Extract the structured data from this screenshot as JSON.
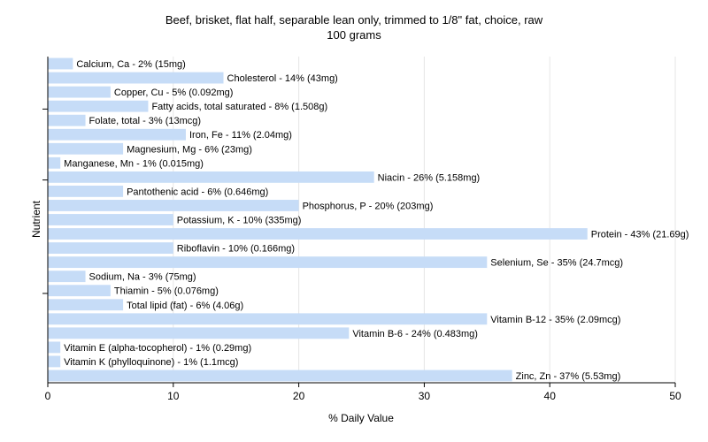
{
  "chart_data": {
    "type": "bar",
    "orientation": "horizontal",
    "title": "Beef, brisket, flat half, separable lean only, trimmed to 1/8\" fat, choice, raw",
    "subtitle": "100 grams",
    "xlabel": "% Daily Value",
    "ylabel": "Nutrient",
    "xlim": [
      0,
      50
    ],
    "xticks": [
      0,
      10,
      20,
      30,
      40,
      50
    ],
    "grid": true,
    "bar_color": "#c6dcf7",
    "categories": [
      "Calcium, Ca",
      "Cholesterol",
      "Copper, Cu",
      "Fatty acids, total saturated",
      "Folate, total",
      "Iron, Fe",
      "Magnesium, Mg",
      "Manganese, Mn",
      "Niacin",
      "Pantothenic acid",
      "Phosphorus, P",
      "Potassium, K",
      "Protein",
      "Riboflavin",
      "Selenium, Se",
      "Sodium, Na",
      "Thiamin",
      "Total lipid (fat)",
      "Vitamin B-12",
      "Vitamin B-6",
      "Vitamin E (alpha-tocopherol)",
      "Vitamin K (phylloquinone)",
      "Zinc, Zn"
    ],
    "values": [
      2,
      14,
      5,
      8,
      3,
      11,
      6,
      1,
      26,
      6,
      20,
      10,
      43,
      10,
      35,
      3,
      5,
      6,
      35,
      24,
      1,
      1,
      37
    ],
    "labels": [
      "Calcium, Ca - 2% (15mg)",
      "Cholesterol - 14% (43mg)",
      "Copper, Cu - 5% (0.092mg)",
      "Fatty acids, total saturated - 8% (1.508g)",
      "Folate, total - 3% (13mcg)",
      "Iron, Fe - 11% (2.04mg)",
      "Magnesium, Mg - 6% (23mg)",
      "Manganese, Mn - 1% (0.015mg)",
      "Niacin - 26% (5.158mg)",
      "Pantothenic acid - 6% (0.646mg)",
      "Phosphorus, P - 20% (203mg)",
      "Potassium, K - 10% (335mg)",
      "Protein - 43% (21.69g)",
      "Riboflavin - 10% (0.166mg)",
      "Selenium, Se - 35% (24.7mcg)",
      "Sodium, Na - 3% (75mg)",
      "Thiamin - 5% (0.076mg)",
      "Total lipid (fat) - 6% (4.06g)",
      "Vitamin B-12 - 35% (2.09mcg)",
      "Vitamin B-6 - 24% (0.483mg)",
      "Vitamin E (alpha-tocopherol) - 1% (0.29mg)",
      "Vitamin K (phylloquinone) - 1% (1.1mcg)",
      "Zinc, Zn - 37% (5.53mg)"
    ]
  }
}
